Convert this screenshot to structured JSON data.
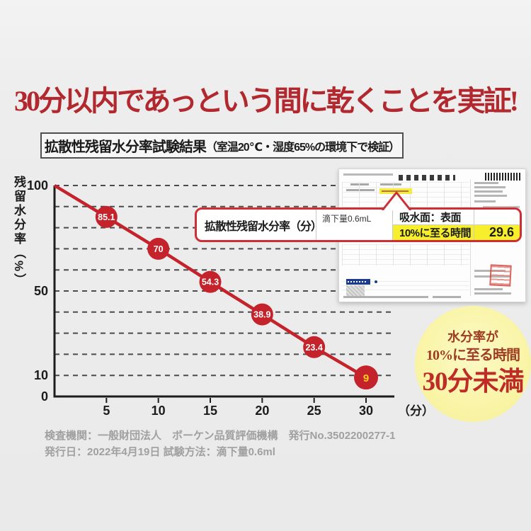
{
  "headline": {
    "text": "30分以内であっという間に乾くことを実証!",
    "color": "#b1282e"
  },
  "subheader": {
    "main": "拡散性残留水分率試験結果",
    "note": "（室温20℃・湿度65%の環境下で検証）"
  },
  "chart_data": {
    "type": "line",
    "series_label": "拡散性残留水分率（分）",
    "x": [
      0,
      5,
      10,
      15,
      20,
      25,
      30
    ],
    "values": [
      100,
      85.1,
      70,
      54.3,
      38.9,
      23.4,
      9
    ],
    "point_labels": [
      null,
      "85.1",
      "70",
      "54.3",
      "38.9",
      "23.4",
      "9"
    ],
    "xticks": [
      5,
      10,
      15,
      20,
      25,
      30
    ],
    "yticks": [
      100,
      50,
      10,
      0
    ],
    "xlabel": "（分）",
    "ylabel": "残留水分率（%）",
    "xlim": [
      0,
      32.7
    ],
    "ylim": [
      0,
      100
    ],
    "grid": {
      "horizontal_every": 10,
      "style": "dashed"
    },
    "line_color": "#c4232b",
    "marker_color": "#c4232b",
    "point_label_color": "#ffffff",
    "last_point_label_color": "#f6cf1c"
  },
  "callout": {
    "test_label": "拡散性残留水分率（分）",
    "drop_label": "滴下量0.6mL",
    "surface_label": "吸水面：表面",
    "time_label": "10%に至る時間",
    "time_value": "29.6",
    "highlight_color": "#f7ef2b",
    "border_color": "#ce2f36"
  },
  "badge": {
    "line1": "水分率が",
    "line2": "10%に至る時間",
    "line3": "30分未満",
    "bg_color": "#f9f4a4",
    "text_color": "#9e3c22",
    "emphasis_color": "#bf2b27"
  },
  "footer": {
    "line1": "検査機関：一般財団法人　ボーケン品質評価機構　発行No.3502200277-1",
    "line2": "発行日：2022年4月19日 試験方法：滴下量0.6ml"
  }
}
